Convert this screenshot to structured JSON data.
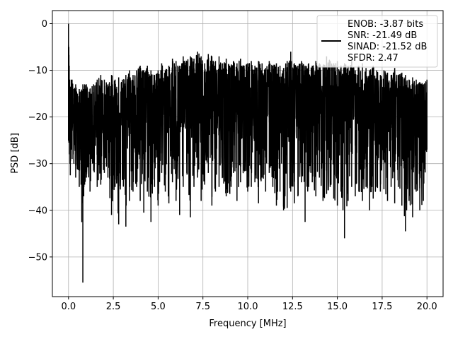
{
  "chart_data": {
    "type": "line",
    "title": "",
    "xlabel": "Frequency [MHz]",
    "ylabel": "PSD [dB]",
    "xlim": [
      -0.9,
      20.9
    ],
    "ylim": [
      -58.5,
      2.8
    ],
    "xticks": [
      0.0,
      2.5,
      5.0,
      7.5,
      10.0,
      12.5,
      15.0,
      17.5,
      20.0
    ],
    "xtick_labels": [
      "0.0",
      "2.5",
      "5.0",
      "7.5",
      "10.0",
      "12.5",
      "15.0",
      "17.5",
      "20.0"
    ],
    "yticks": [
      0,
      -10,
      -20,
      -30,
      -40,
      -50
    ],
    "ytick_labels": [
      "0",
      "−10",
      "−20",
      "−30",
      "−40",
      "−50"
    ],
    "grid": true,
    "legend_position": "top-right",
    "line_color": "#000000",
    "series": [
      {
        "name": "ENOB: -3.87 bits\nSNR: -21.49 dB\nSINAD: -21.52 dB\nSFDR: 2.47",
        "x": [
          0.0,
          0.02,
          0.04,
          0.06,
          0.08,
          0.1,
          0.15,
          0.2,
          0.3,
          0.4,
          0.5,
          0.6,
          0.7,
          0.8,
          0.85,
          0.9,
          1.0,
          1.2,
          1.4,
          1.6,
          1.8,
          2.0,
          2.2,
          2.4,
          2.6,
          2.8,
          3.0,
          3.2,
          3.4,
          3.6,
          3.8,
          4.0,
          4.2,
          4.4,
          4.6,
          4.8,
          5.0,
          5.2,
          5.4,
          5.6,
          5.8,
          6.0,
          6.2,
          6.4,
          6.6,
          6.8,
          7.0,
          7.2,
          7.4,
          7.6,
          7.8,
          8.0,
          8.2,
          8.4,
          8.6,
          8.8,
          9.0,
          9.2,
          9.4,
          9.6,
          9.8,
          10.0,
          10.2,
          10.4,
          10.6,
          10.8,
          11.0,
          11.2,
          11.4,
          11.6,
          11.8,
          12.0,
          12.2,
          12.4,
          12.6,
          12.8,
          13.0,
          13.2,
          13.4,
          13.6,
          13.8,
          14.0,
          14.2,
          14.4,
          14.6,
          14.8,
          15.0,
          15.2,
          15.4,
          15.6,
          15.8,
          16.0,
          16.2,
          16.4,
          16.6,
          16.8,
          17.0,
          17.2,
          17.4,
          17.6,
          17.8,
          18.0,
          18.2,
          18.4,
          18.6,
          18.8,
          19.0,
          19.2,
          19.4,
          19.6,
          19.8,
          20.0
        ],
        "max": [
          0.0,
          -5.0,
          -9.0,
          -12.0,
          -14.0,
          -13.5,
          -12.0,
          -12.0,
          -14.0,
          -13.0,
          -15.0,
          -14.0,
          -14.5,
          -13.0,
          -14.0,
          -13.0,
          -13.0,
          -14.0,
          -13.0,
          -12.0,
          -11.0,
          -12.0,
          -13.0,
          -11.0,
          -12.0,
          -11.5,
          -12.0,
          -11.0,
          -10.0,
          -11.0,
          -10.0,
          -9.0,
          -10.0,
          -9.0,
          -10.0,
          -11.0,
          -10.0,
          -8.5,
          -10.0,
          -9.0,
          -7.5,
          -8.0,
          -9.0,
          -7.0,
          -8.0,
          -7.0,
          -7.5,
          -6.0,
          -7.0,
          -8.5,
          -6.5,
          -7.0,
          -8.0,
          -7.0,
          -8.5,
          -7.5,
          -9.0,
          -8.0,
          -8.5,
          -7.5,
          -9.0,
          -8.5,
          -8.0,
          -9.0,
          -8.0,
          -8.5,
          -9.5,
          -8.0,
          -9.0,
          -8.5,
          -9.0,
          -9.5,
          -8.0,
          -6.0,
          -8.5,
          -9.0,
          -8.0,
          -9.0,
          -8.5,
          -9.0,
          -8.0,
          -8.5,
          -9.0,
          -7.0,
          -8.0,
          -8.5,
          -8.0,
          -9.0,
          -8.5,
          -9.0,
          -8.0,
          -10.0,
          -9.0,
          -8.5,
          -9.5,
          -10.0,
          -9.0,
          -10.0,
          -11.0,
          -10.0,
          -10.5,
          -11.0,
          -9.5,
          -11.0,
          -10.5,
          -11.0,
          -12.0,
          -11.5,
          -12.0,
          -12.5,
          -13.0,
          -12.0
        ],
        "min": [
          -25.0,
          -25.5,
          -24.0,
          -28.0,
          -30.0,
          -32.5,
          -27.0,
          -29.0,
          -30.0,
          -33.0,
          -31.0,
          -35.0,
          -34.5,
          -55.5,
          -37.0,
          -34.5,
          -33.0,
          -36.0,
          -31.5,
          -35.0,
          -34.5,
          -32.0,
          -33.0,
          -41.0,
          -35.0,
          -43.0,
          -33.5,
          -43.5,
          -38.0,
          -36.0,
          -35.0,
          -38.0,
          -40.5,
          -36.0,
          -42.5,
          -35.0,
          -39.0,
          -32.0,
          -36.0,
          -38.5,
          -34.0,
          -38.0,
          -41.0,
          -35.0,
          -32.0,
          -41.5,
          -35.0,
          -33.0,
          -38.0,
          -34.5,
          -32.0,
          -39.0,
          -36.0,
          -35.0,
          -33.0,
          -37.0,
          -36.5,
          -32.0,
          -38.0,
          -34.0,
          -31.5,
          -36.0,
          -35.0,
          -34.0,
          -38.5,
          -33.0,
          -36.0,
          -32.0,
          -35.0,
          -39.0,
          -36.0,
          -40.0,
          -39.5,
          -36.0,
          -38.5,
          -37.0,
          -34.0,
          -42.5,
          -35.0,
          -34.0,
          -37.0,
          -33.0,
          -38.0,
          -36.5,
          -35.0,
          -37.5,
          -39.0,
          -36.0,
          -46.0,
          -38.0,
          -35.0,
          -37.0,
          -36.0,
          -38.0,
          -35.0,
          -40.0,
          -37.5,
          -35.0,
          -36.0,
          -35.5,
          -38.0,
          -35.0,
          -38.5,
          -35.0,
          -39.0,
          -44.5,
          -38.0,
          -41.5,
          -36.0,
          -40.0,
          -38.0,
          -27.0
        ],
        "mean": [
          -1.0,
          -17.0,
          -18.0,
          -19.0,
          -20.0,
          -21.0,
          -20.0,
          -21.0,
          -21.5,
          -21.0,
          -22.0,
          -21.5,
          -22.0,
          -22.0,
          -21.5,
          -22.0,
          -21.5,
          -21.0,
          -21.5,
          -21.0,
          -20.5,
          -21.0,
          -21.0,
          -20.5,
          -20.0,
          -20.5,
          -20.0,
          -20.0,
          -19.5,
          -20.0,
          -19.5,
          -19.0,
          -19.5,
          -19.0,
          -19.0,
          -19.5,
          -19.0,
          -18.5,
          -19.0,
          -18.5,
          -18.0,
          -18.5,
          -18.5,
          -18.0,
          -18.0,
          -18.0,
          -18.5,
          -18.0,
          -18.0,
          -18.5,
          -18.0,
          -18.0,
          -18.5,
          -18.0,
          -18.5,
          -18.0,
          -18.5,
          -18.0,
          -18.5,
          -18.0,
          -18.5,
          -18.5,
          -18.0,
          -18.5,
          -18.0,
          -18.5,
          -19.0,
          -18.5,
          -18.5,
          -18.5,
          -19.0,
          -19.0,
          -18.5,
          -18.0,
          -18.5,
          -19.0,
          -18.5,
          -19.0,
          -18.5,
          -19.0,
          -18.5,
          -18.5,
          -19.0,
          -18.5,
          -18.5,
          -19.0,
          -18.5,
          -19.0,
          -19.0,
          -19.0,
          -18.5,
          -19.5,
          -19.0,
          -19.0,
          -19.5,
          -19.5,
          -19.0,
          -19.5,
          -20.0,
          -19.5,
          -20.0,
          -20.0,
          -19.5,
          -20.0,
          -20.0,
          -20.5,
          -20.5,
          -20.5,
          -20.5,
          -21.0,
          -21.0,
          -20.5
        ]
      }
    ]
  }
}
